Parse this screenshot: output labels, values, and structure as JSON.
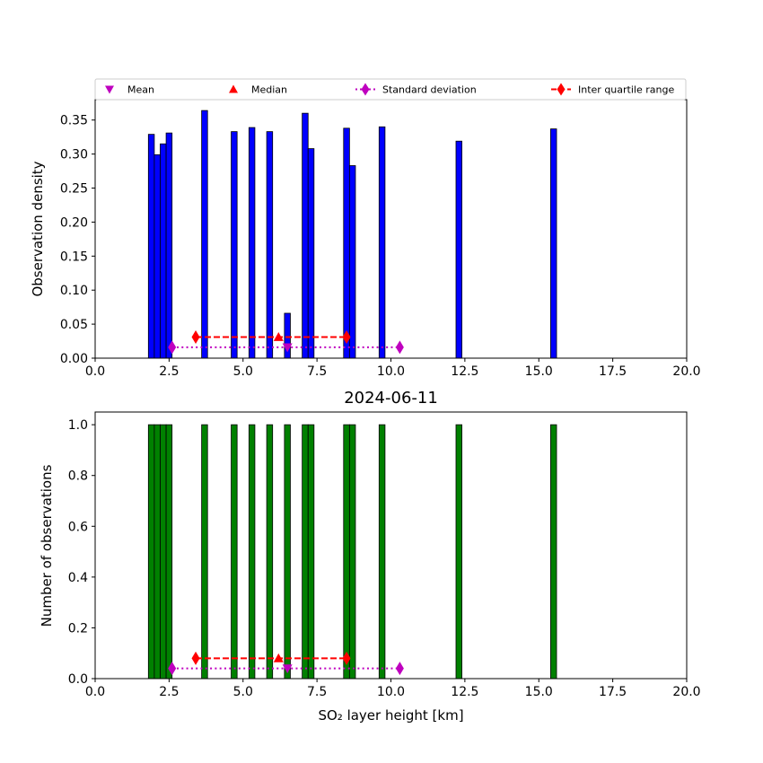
{
  "legend": {
    "entries": [
      {
        "label": "Mean",
        "marker": "triangle-down",
        "color": "#bf00bf",
        "line": "none"
      },
      {
        "label": "Median",
        "marker": "triangle-up",
        "color": "#ff0000",
        "line": "none"
      },
      {
        "label": "Standard deviation",
        "marker": "diamond",
        "color": "#bf00bf",
        "line": "dotted"
      },
      {
        "label": "Inter quartile range",
        "marker": "diamond",
        "color": "#ff0000",
        "line": "dashed"
      }
    ]
  },
  "chart_data": [
    {
      "type": "bar",
      "title": "",
      "xlabel": "",
      "ylabel": "Observation density",
      "xlim": [
        0,
        20
      ],
      "ylim": [
        0,
        0.38
      ],
      "xticks": [
        "0.0",
        "2.5",
        "5.0",
        "7.5",
        "10.0",
        "12.5",
        "15.0",
        "17.5",
        "20.0"
      ],
      "yticks": [
        "0.00",
        "0.05",
        "0.10",
        "0.15",
        "0.20",
        "0.25",
        "0.30",
        "0.35"
      ],
      "bar_color": "#0000ff",
      "bin_width": 0.2,
      "bars": [
        {
          "x": 1.8,
          "value": 0.329
        },
        {
          "x": 2.0,
          "value": 0.299
        },
        {
          "x": 2.2,
          "value": 0.315
        },
        {
          "x": 2.4,
          "value": 0.331
        },
        {
          "x": 3.6,
          "value": 0.364
        },
        {
          "x": 4.6,
          "value": 0.333
        },
        {
          "x": 5.2,
          "value": 0.339
        },
        {
          "x": 5.8,
          "value": 0.333
        },
        {
          "x": 6.4,
          "value": 0.066
        },
        {
          "x": 7.0,
          "value": 0.36
        },
        {
          "x": 7.2,
          "value": 0.308
        },
        {
          "x": 8.4,
          "value": 0.338
        },
        {
          "x": 8.6,
          "value": 0.283
        },
        {
          "x": 9.6,
          "value": 0.34
        },
        {
          "x": 12.2,
          "value": 0.319
        },
        {
          "x": 15.4,
          "value": 0.337
        }
      ],
      "mean": {
        "x": 6.5,
        "y": 0.016
      },
      "median": {
        "x": 6.2,
        "y": 0.031
      },
      "std_range": {
        "x": [
          2.6,
          10.3
        ],
        "y": 0.016
      },
      "iqr": {
        "x": [
          3.4,
          8.5
        ],
        "y": 0.031
      }
    },
    {
      "type": "bar",
      "title": "2024-06-11",
      "xlabel": "SO₂ layer height [km]",
      "ylabel": "Number of observations",
      "xlim": [
        0,
        20
      ],
      "ylim": [
        0,
        1.05
      ],
      "xticks": [
        "0.0",
        "2.5",
        "5.0",
        "7.5",
        "10.0",
        "12.5",
        "15.0",
        "17.5",
        "20.0"
      ],
      "yticks": [
        "0.0",
        "0.2",
        "0.4",
        "0.6",
        "0.8",
        "1.0"
      ],
      "bar_color": "#008000",
      "bin_width": 0.2,
      "bars": [
        {
          "x": 1.8,
          "value": 1
        },
        {
          "x": 2.0,
          "value": 1
        },
        {
          "x": 2.2,
          "value": 1
        },
        {
          "x": 2.4,
          "value": 1
        },
        {
          "x": 3.6,
          "value": 1
        },
        {
          "x": 4.6,
          "value": 1
        },
        {
          "x": 5.2,
          "value": 1
        },
        {
          "x": 5.8,
          "value": 1
        },
        {
          "x": 6.4,
          "value": 1
        },
        {
          "x": 7.0,
          "value": 1
        },
        {
          "x": 7.2,
          "value": 1
        },
        {
          "x": 8.4,
          "value": 1
        },
        {
          "x": 8.6,
          "value": 1
        },
        {
          "x": 9.6,
          "value": 1
        },
        {
          "x": 12.2,
          "value": 1
        },
        {
          "x": 15.4,
          "value": 1
        }
      ],
      "mean": {
        "x": 6.5,
        "y": 0.04
      },
      "median": {
        "x": 6.2,
        "y": 0.08
      },
      "std_range": {
        "x": [
          2.6,
          10.3
        ],
        "y": 0.04
      },
      "iqr": {
        "x": [
          3.4,
          8.5
        ],
        "y": 0.08
      }
    }
  ]
}
